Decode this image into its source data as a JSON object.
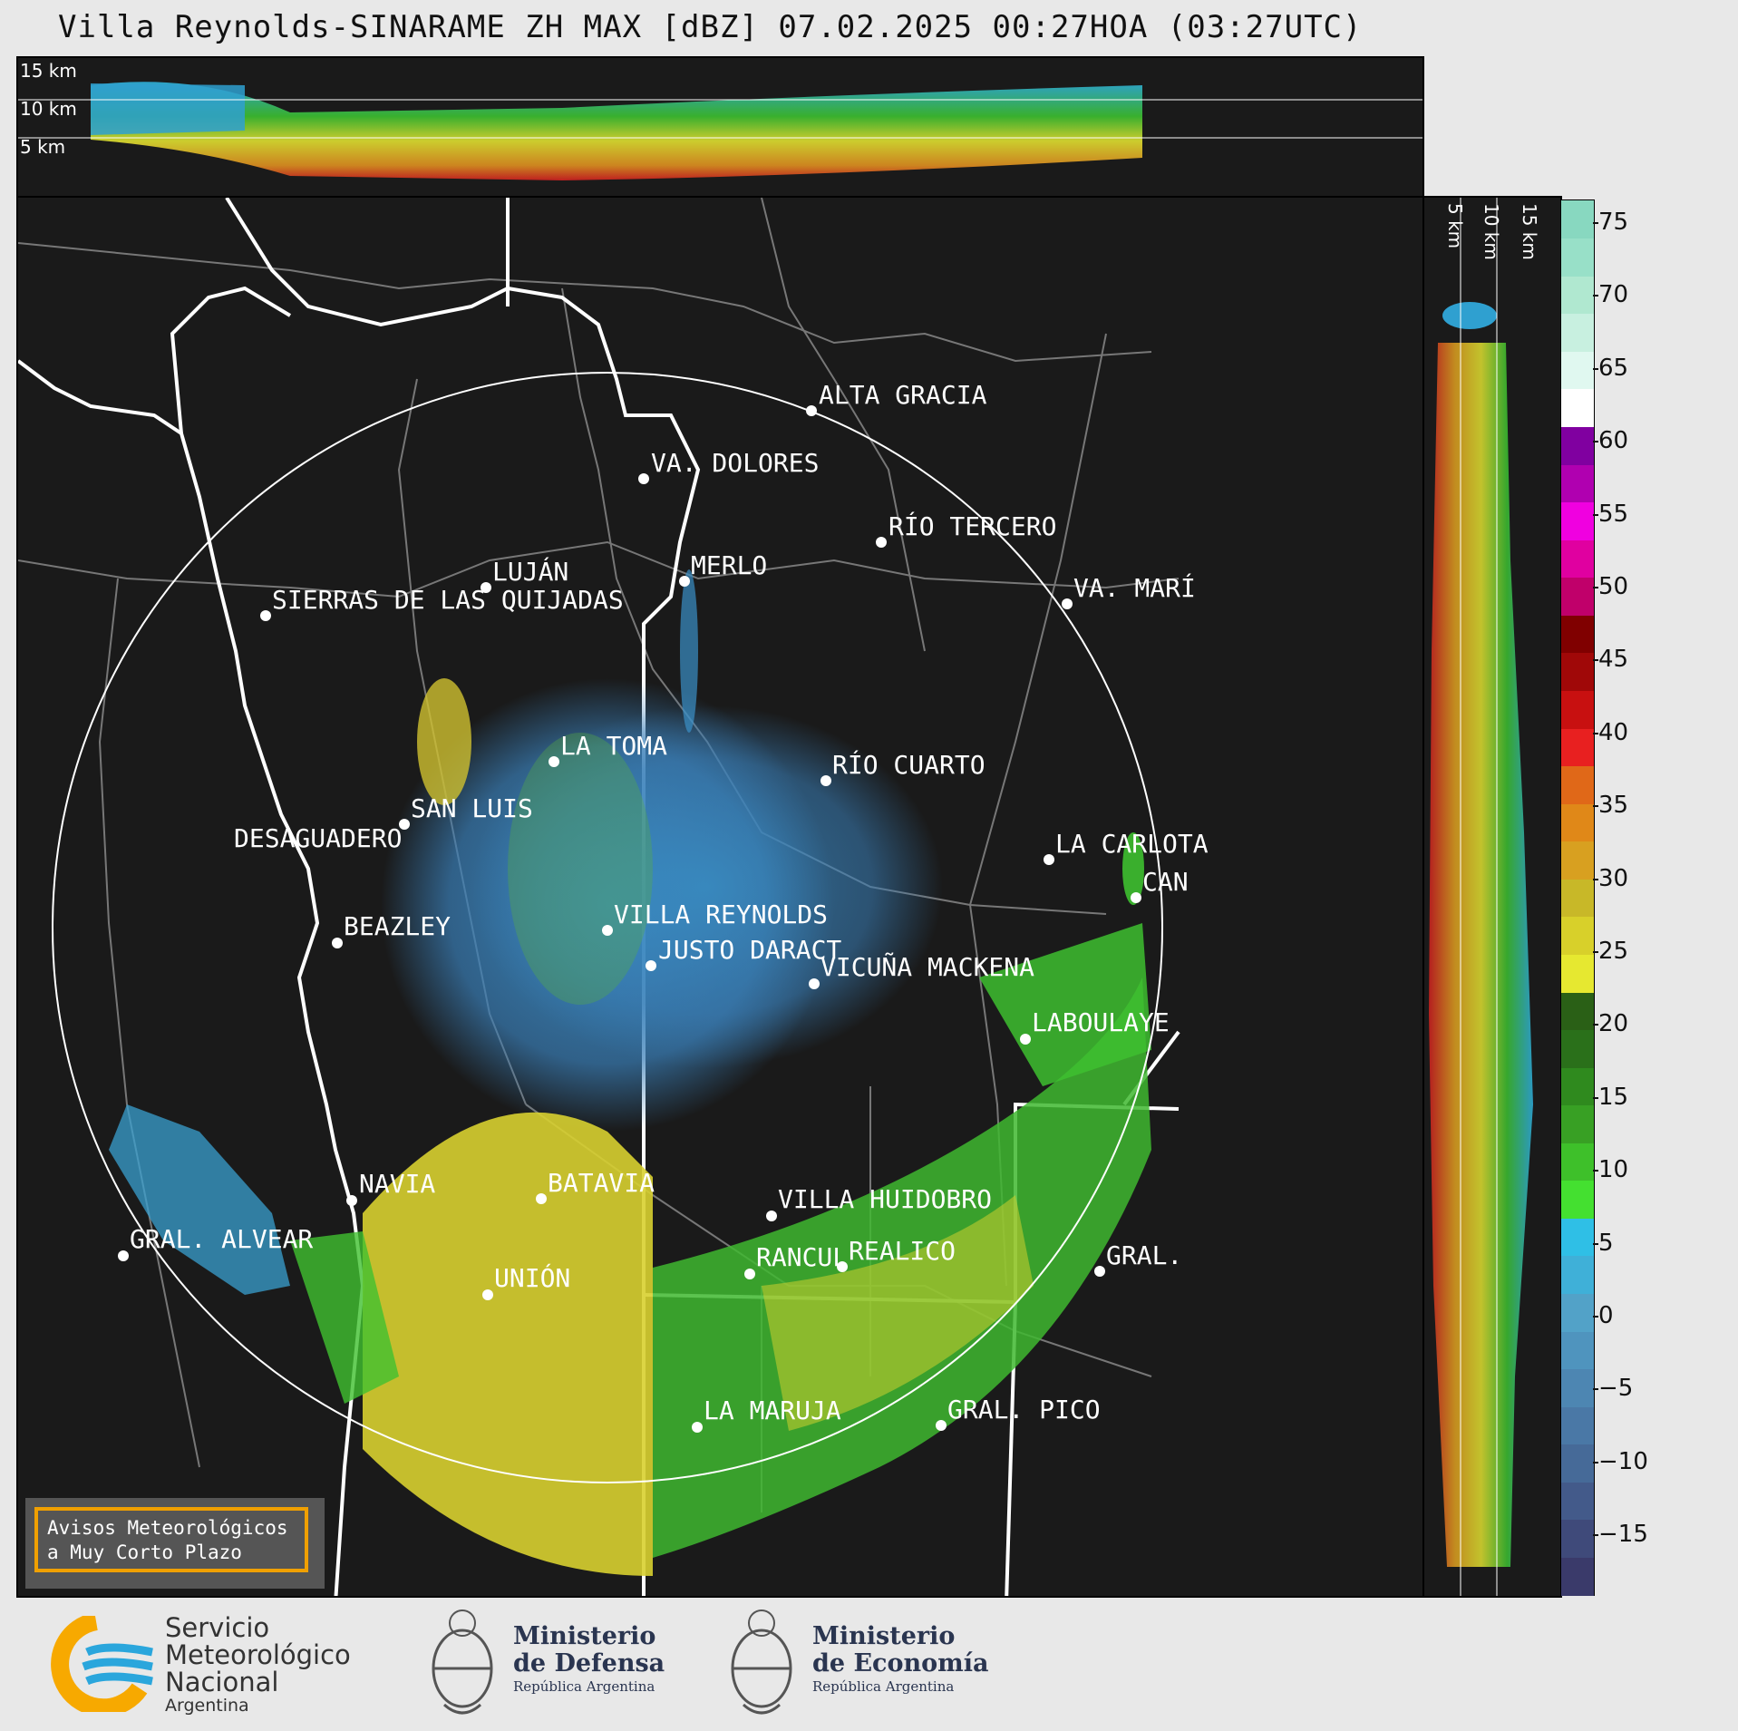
{
  "title": "Villa Reynolds-SINARAME ZH MAX [dBZ] 07.02.2025 00:27HOA (03:27UTC)",
  "top_panel": {
    "height_labels": [
      "15 km",
      "10 km",
      "5 km"
    ]
  },
  "side_panel": {
    "height_labels": [
      "5 km",
      "10 km",
      "15 km"
    ]
  },
  "colorbar": {
    "unit": "dBZ",
    "ticks": [
      "75",
      "70",
      "65",
      "60",
      "55",
      "50",
      "45",
      "40",
      "35",
      "30",
      "25",
      "20",
      "15",
      "10",
      "5",
      "0",
      "−5",
      "−10",
      "−15"
    ],
    "colors": [
      "#3a3a6a",
      "#3f4a7a",
      "#435a8a",
      "#466a98",
      "#4a78a6",
      "#4d86b2",
      "#4f94be",
      "#52a2c8",
      "#3fb0d8",
      "#2fbfe6",
      "#44e030",
      "#3ec02a",
      "#38a024",
      "#2f8a1e",
      "#2a701a",
      "#2a6016",
      "#e6e830",
      "#d8d02a",
      "#c8b828",
      "#d8a020",
      "#e08818",
      "#e06818",
      "#e82020",
      "#c81010",
      "#a00808",
      "#800000",
      "#c0006a",
      "#e000a0",
      "#f000e0",
      "#b000b0",
      "#8000a0",
      "#ffffff",
      "#e0f8f0",
      "#c8f0e0",
      "#b0e8d0",
      "#98e0c8",
      "#88d8c0"
    ]
  },
  "cities": [
    {
      "name": "ALTA GRACIA"
    },
    {
      "name": "VA. DOLORES"
    },
    {
      "name": "RÍO TERCERO"
    },
    {
      "name": "MERLO"
    },
    {
      "name": "LUJÁN"
    },
    {
      "name": "SIERRAS DE LAS QUIJADAS"
    },
    {
      "name": "VA. MARÍ"
    },
    {
      "name": "LA TOMA"
    },
    {
      "name": "RÍO CUARTO"
    },
    {
      "name": "SAN LUIS"
    },
    {
      "name": "DESAGUADERO"
    },
    {
      "name": "LA CARLOTA"
    },
    {
      "name": "CAN"
    },
    {
      "name": "VILLA REYNOLDS"
    },
    {
      "name": "BEAZLEY"
    },
    {
      "name": "JUSTO DARACT"
    },
    {
      "name": "VICUÑA MACKENA"
    },
    {
      "name": "LABOULAYE"
    },
    {
      "name": "NAVIA"
    },
    {
      "name": "BATAVIA"
    },
    {
      "name": "VILLA HUIDOBRO"
    },
    {
      "name": "GRAL. ALVEAR"
    },
    {
      "name": "RANCUL"
    },
    {
      "name": "REALICO"
    },
    {
      "name": "GRAL."
    },
    {
      "name": "UNIÓN"
    },
    {
      "name": "LA MARUJA"
    },
    {
      "name": "GRAL. PICO"
    }
  ],
  "alert_box": {
    "line1": "Avisos Meteorológicos",
    "line2": "a Muy Corto Plazo"
  },
  "logos": {
    "smn": {
      "line1": "Servicio",
      "line2": "Meteorológico",
      "line3": "Nacional",
      "line4": "Argentina"
    },
    "defensa": {
      "line1": "Ministerio",
      "line2": "de Defensa",
      "line3": "República Argentina"
    },
    "economia": {
      "line1": "Ministerio",
      "line2": "de Economía",
      "line3": "República Argentina"
    }
  }
}
